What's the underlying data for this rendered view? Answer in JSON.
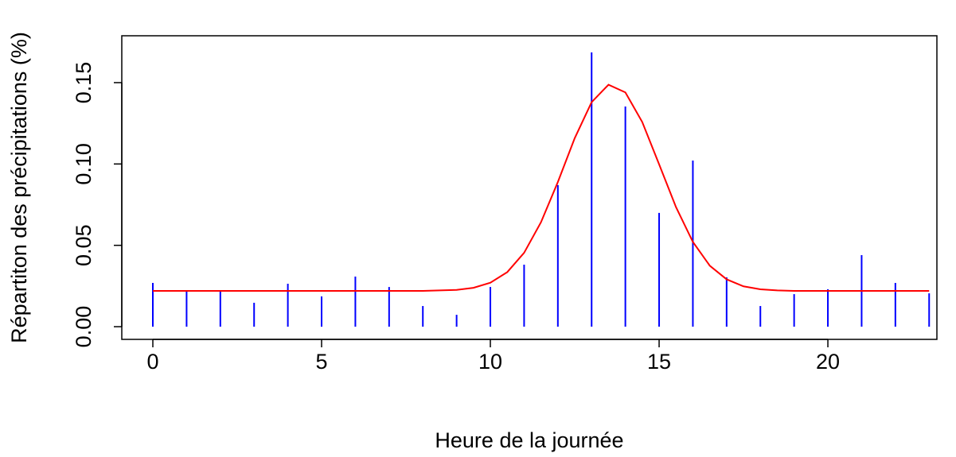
{
  "chart_data": {
    "type": "spike",
    "xlabel": "Heure de la journée",
    "ylabel": "Répartiton des précipitations (%)",
    "x": [
      0,
      1,
      2,
      3,
      4,
      5,
      6,
      7,
      8,
      9,
      10,
      11,
      12,
      13,
      14,
      15,
      16,
      17,
      18,
      19,
      20,
      21,
      22,
      23
    ],
    "values": [
      0.0269,
      0.022,
      0.022,
      0.0147,
      0.0264,
      0.0186,
      0.0308,
      0.0244,
      0.0127,
      0.0073,
      0.0244,
      0.0381,
      0.087,
      0.1686,
      0.1353,
      0.0699,
      0.1021,
      0.0303,
      0.0127,
      0.02,
      0.023,
      0.044,
      0.0269,
      0.0205
    ],
    "color": "#0000ff",
    "curve": {
      "color": "#ff0000",
      "x": [
        0,
        1,
        2,
        3,
        4,
        5,
        6,
        7,
        8,
        9,
        9.5,
        10,
        10.5,
        11,
        11.5,
        12,
        12.5,
        13,
        13.5,
        14,
        14.5,
        15,
        15.5,
        16,
        16.5,
        17,
        17.5,
        18,
        18.5,
        19,
        20,
        21,
        22,
        23
      ],
      "y": [
        0.022,
        0.022,
        0.022,
        0.022,
        0.022,
        0.022,
        0.022,
        0.022,
        0.022,
        0.0226,
        0.0239,
        0.027,
        0.0335,
        0.0454,
        0.0642,
        0.0889,
        0.1159,
        0.138,
        0.1487,
        0.144,
        0.1258,
        0.0998,
        0.0735,
        0.0521,
        0.0375,
        0.0291,
        0.0248,
        0.023,
        0.0223,
        0.022,
        0.022,
        0.022,
        0.022,
        0.022
      ]
    },
    "xlim": [
      -0.92,
      23.23
    ],
    "ylim": [
      -0.0078,
      0.1788
    ],
    "xticks": [
      0,
      5,
      10,
      15,
      20
    ],
    "yticks": [
      {
        "value": 0,
        "label": "0.00"
      },
      {
        "value": 0.05,
        "label": "0.05"
      },
      {
        "value": 0.1,
        "label": "0.10"
      },
      {
        "value": 0.15,
        "label": "0.15"
      }
    ]
  }
}
